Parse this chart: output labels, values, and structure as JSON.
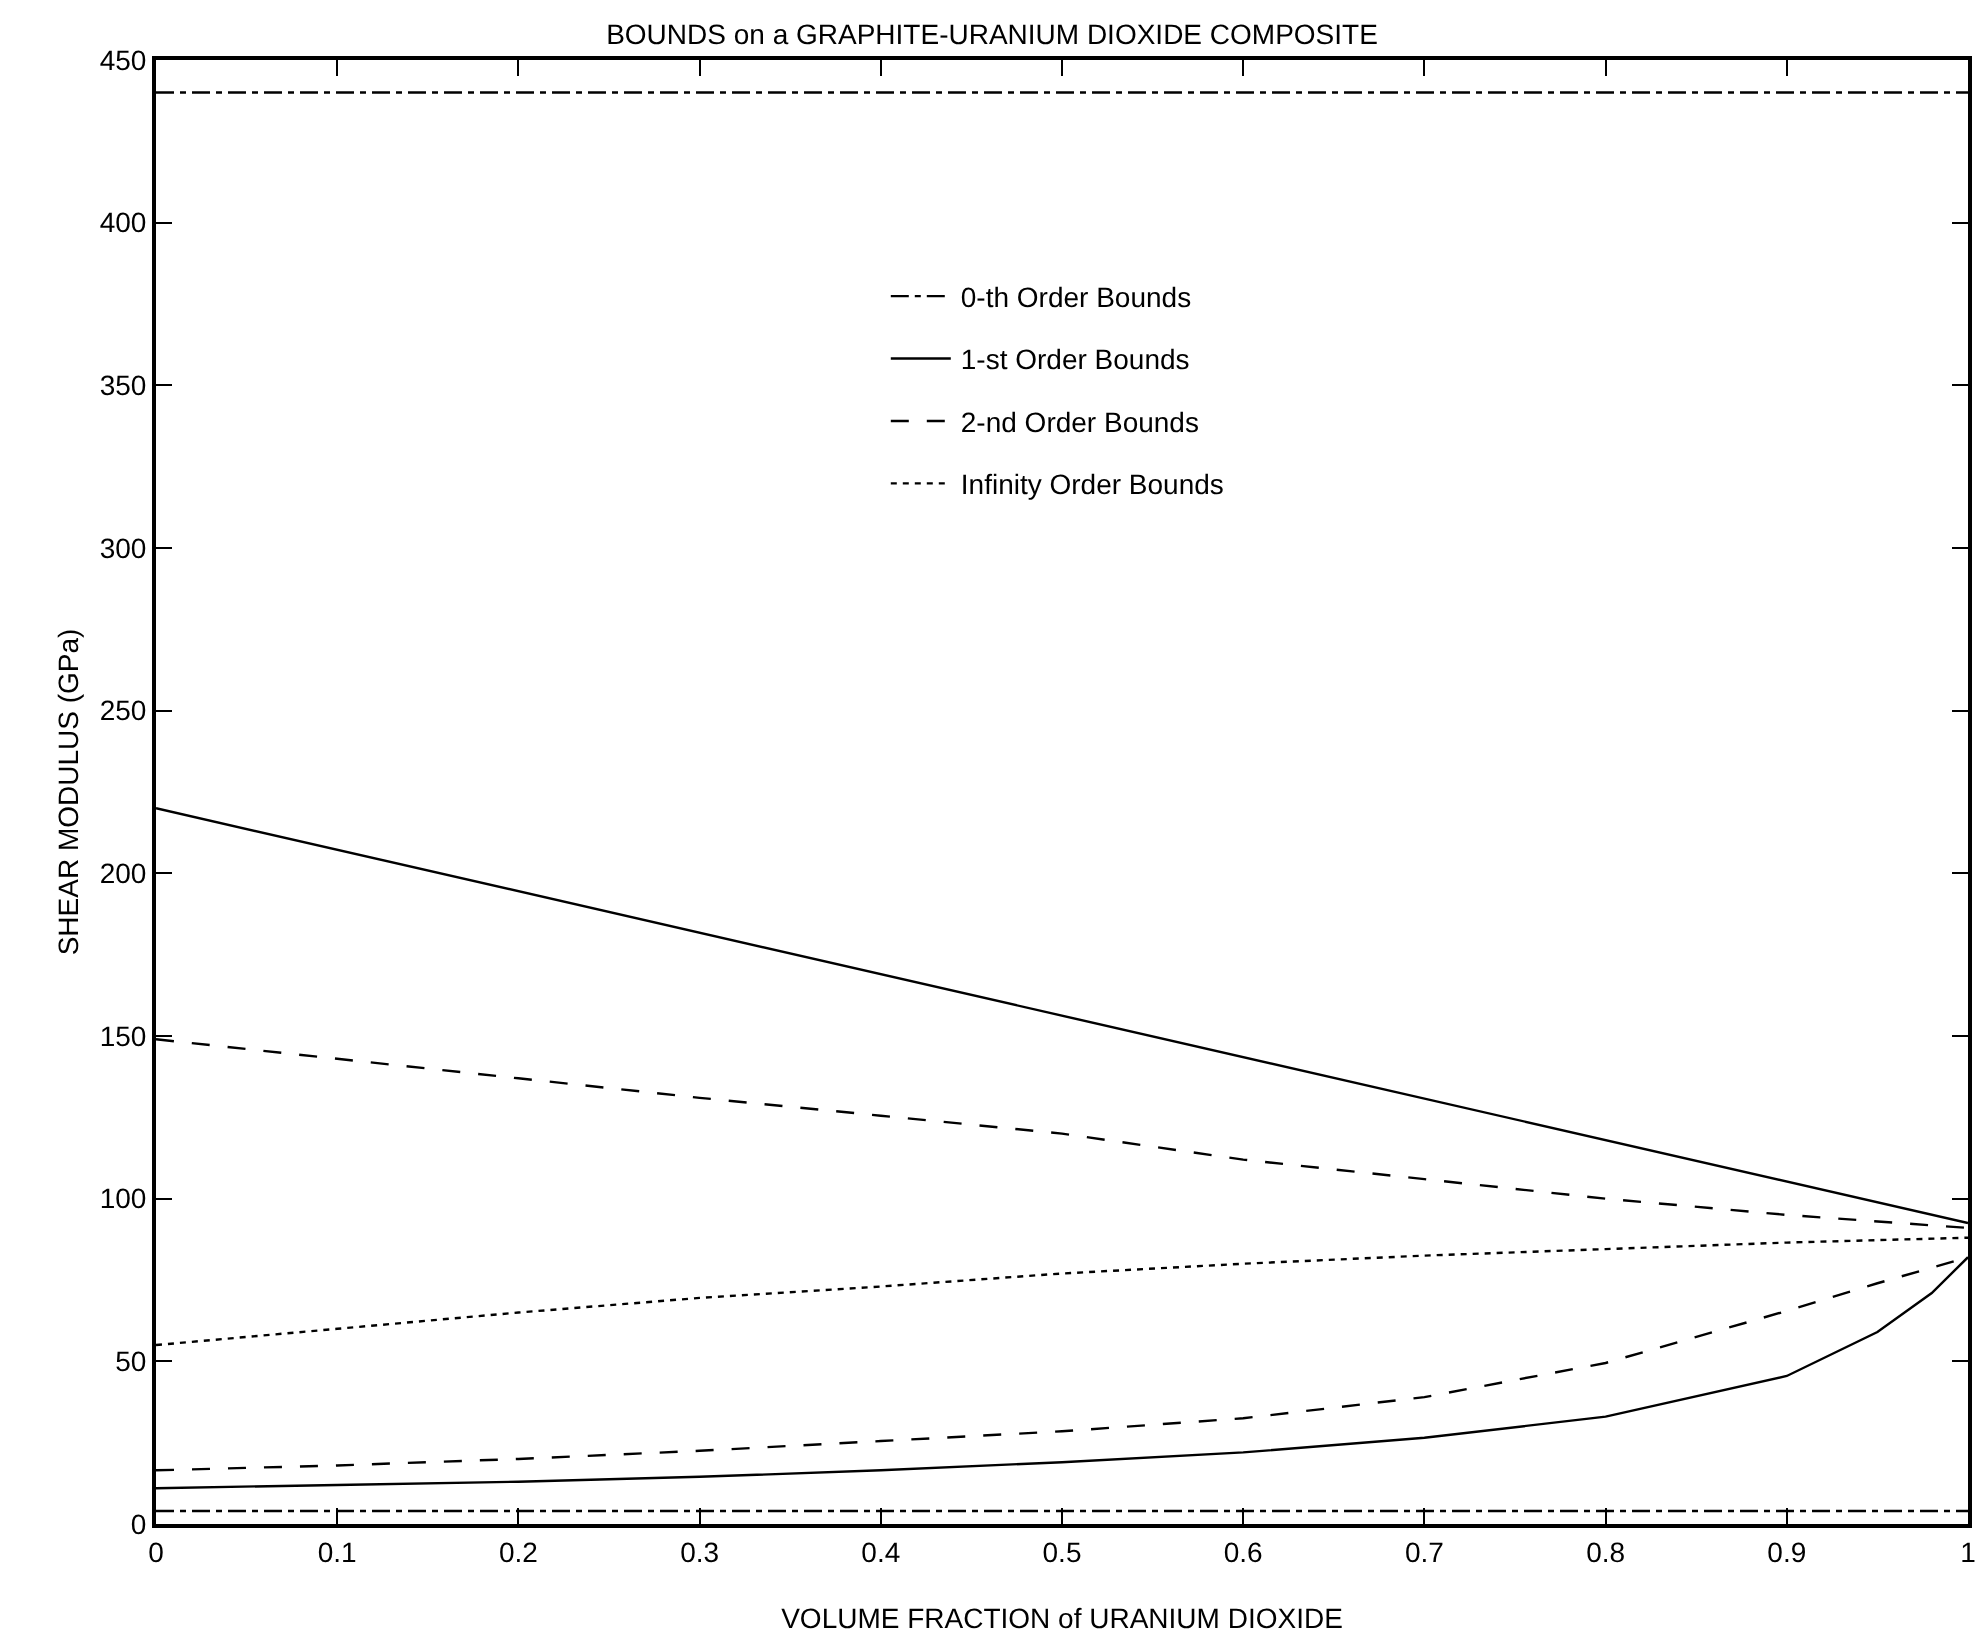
{
  "chart_data": {
    "type": "line",
    "title": "BOUNDS on a GRAPHITE-URANIUM DIOXIDE COMPOSITE",
    "xlabel": "VOLUME FRACTION of URANIUM DIOXIDE",
    "ylabel": "SHEAR MODULUS (GPa)",
    "xlim": [
      0,
      1
    ],
    "xticks": [
      0,
      0.1,
      0.2,
      0.3,
      0.4,
      0.5,
      0.6,
      0.7,
      0.8,
      0.9,
      1
    ],
    "ylim": [
      0,
      450
    ],
    "yticks": [
      0,
      50,
      100,
      150,
      200,
      250,
      300,
      350,
      400,
      450
    ],
    "grid": false,
    "legend": "top",
    "marker": "none",
    "series": [
      {
        "name": "0-th Order Bounds",
        "color": "#000000",
        "line_style": "dashdot",
        "x": [
          0,
          1
        ],
        "values": [
          440,
          440
        ]
      },
      {
        "color": "#000000",
        "line_style": "dashdot",
        "x": [
          0,
          1
        ],
        "values": [
          4,
          4
        ]
      },
      {
        "name": "1-st Order Bounds",
        "color": "#000000",
        "line_style": "solid",
        "x": [
          0,
          1
        ],
        "values": [
          220,
          92.5
        ]
      },
      {
        "color": "#000000",
        "line_style": "solid",
        "x": [
          0,
          0.1,
          0.2,
          0.3,
          0.4,
          0.5,
          0.6,
          0.7,
          0.8,
          0.9,
          0.95,
          0.98,
          1
        ],
        "values": [
          11,
          12,
          13,
          14.5,
          16.5,
          19,
          22,
          26.5,
          33,
          45.5,
          59,
          71,
          82
        ]
      },
      {
        "name": "2-nd Order Bounds",
        "color": "#000000",
        "line_style": "dashed",
        "x": [
          0,
          0.1,
          0.2,
          0.3,
          0.4,
          0.5,
          0.6,
          0.7,
          0.8,
          0.9,
          1
        ],
        "values": [
          149,
          143,
          137,
          131,
          125.5,
          120,
          112,
          106,
          100,
          95,
          91
        ]
      },
      {
        "color": "#000000",
        "line_style": "dashed",
        "x": [
          0,
          0.1,
          0.2,
          0.3,
          0.4,
          0.5,
          0.6,
          0.7,
          0.8,
          0.9,
          0.95,
          1
        ],
        "values": [
          16.5,
          18,
          20,
          22.5,
          25.5,
          28.5,
          32.5,
          39,
          49.5,
          65.5,
          74,
          82
        ]
      },
      {
        "name": "Infinity Order Bounds",
        "color": "#000000",
        "line_style": "dotted",
        "x": [
          0,
          0.1,
          0.2,
          0.3,
          0.4,
          0.5,
          0.6,
          0.7,
          0.8,
          0.9,
          1
        ],
        "values": [
          55,
          60,
          65,
          69.5,
          73,
          77,
          80,
          82.5,
          84.5,
          86.5,
          88
        ]
      }
    ]
  }
}
